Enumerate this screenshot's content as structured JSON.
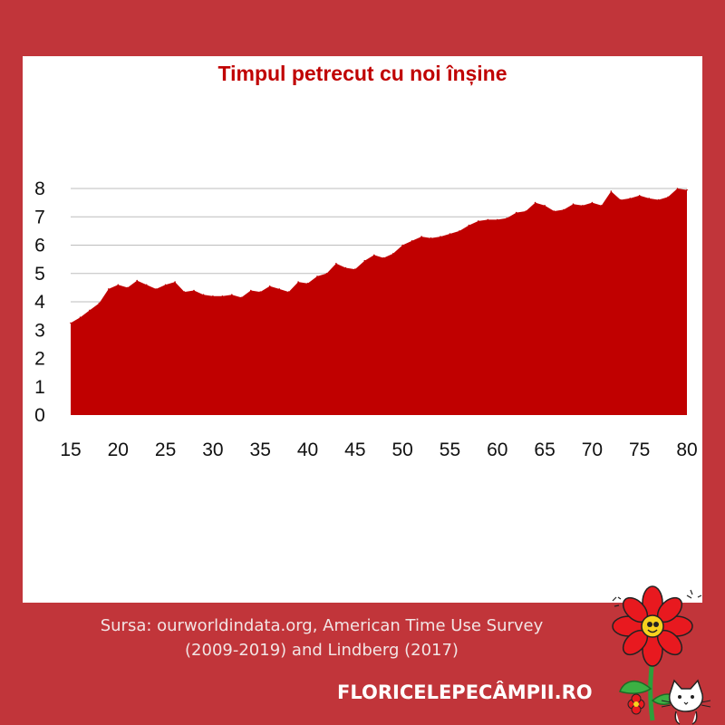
{
  "chart_data": {
    "type": "area",
    "title": "Timpul petrecut cu noi înșine",
    "xlabel": "",
    "ylabel": "",
    "xlim": [
      15,
      80
    ],
    "ylim": [
      0,
      8
    ],
    "x_ticks": [
      "15",
      "20",
      "25",
      "30",
      "35",
      "40",
      "45",
      "50",
      "55",
      "60",
      "65",
      "70",
      "75",
      "80"
    ],
    "y_ticks": [
      "0",
      "1",
      "2",
      "3",
      "4",
      "5",
      "6",
      "7",
      "8"
    ],
    "grid": true,
    "legend": "none",
    "series_color": "#c00000",
    "x": [
      15,
      16,
      17,
      18,
      19,
      20,
      21,
      22,
      23,
      24,
      25,
      26,
      27,
      28,
      29,
      30,
      31,
      32,
      33,
      34,
      35,
      36,
      37,
      38,
      39,
      40,
      41,
      42,
      43,
      44,
      45,
      46,
      47,
      48,
      49,
      50,
      51,
      52,
      53,
      54,
      55,
      56,
      57,
      58,
      59,
      60,
      61,
      62,
      63,
      64,
      65,
      66,
      67,
      68,
      69,
      70,
      71,
      72,
      73,
      74,
      75,
      76,
      77,
      78,
      79,
      80
    ],
    "values": [
      3.25,
      3.45,
      3.7,
      3.95,
      4.45,
      4.6,
      4.5,
      4.75,
      4.6,
      4.45,
      4.6,
      4.7,
      4.35,
      4.4,
      4.25,
      4.2,
      4.2,
      4.25,
      4.15,
      4.4,
      4.35,
      4.55,
      4.45,
      4.35,
      4.7,
      4.65,
      4.9,
      5.0,
      5.35,
      5.2,
      5.15,
      5.45,
      5.65,
      5.55,
      5.7,
      6.0,
      6.15,
      6.3,
      6.25,
      6.3,
      6.4,
      6.5,
      6.7,
      6.85,
      6.9,
      6.9,
      6.95,
      7.15,
      7.2,
      7.5,
      7.4,
      7.2,
      7.25,
      7.45,
      7.4,
      7.5,
      7.4,
      7.9,
      7.6,
      7.65,
      7.75,
      7.65,
      7.6,
      7.7,
      8.0,
      7.95
    ]
  },
  "footer": {
    "source_line1": "Sursa: ourworldindata.org, American Time Use Survey",
    "source_line2": "(2009-2019) and Lindberg (2017)",
    "brand": "FLORICELEPECÂMPII.RO"
  },
  "colors": {
    "background": "#c1353a",
    "panel": "#ffffff",
    "area": "#c00000",
    "title": "#c00000"
  },
  "icons": {
    "logo": "flower-cat-logo-icon"
  }
}
